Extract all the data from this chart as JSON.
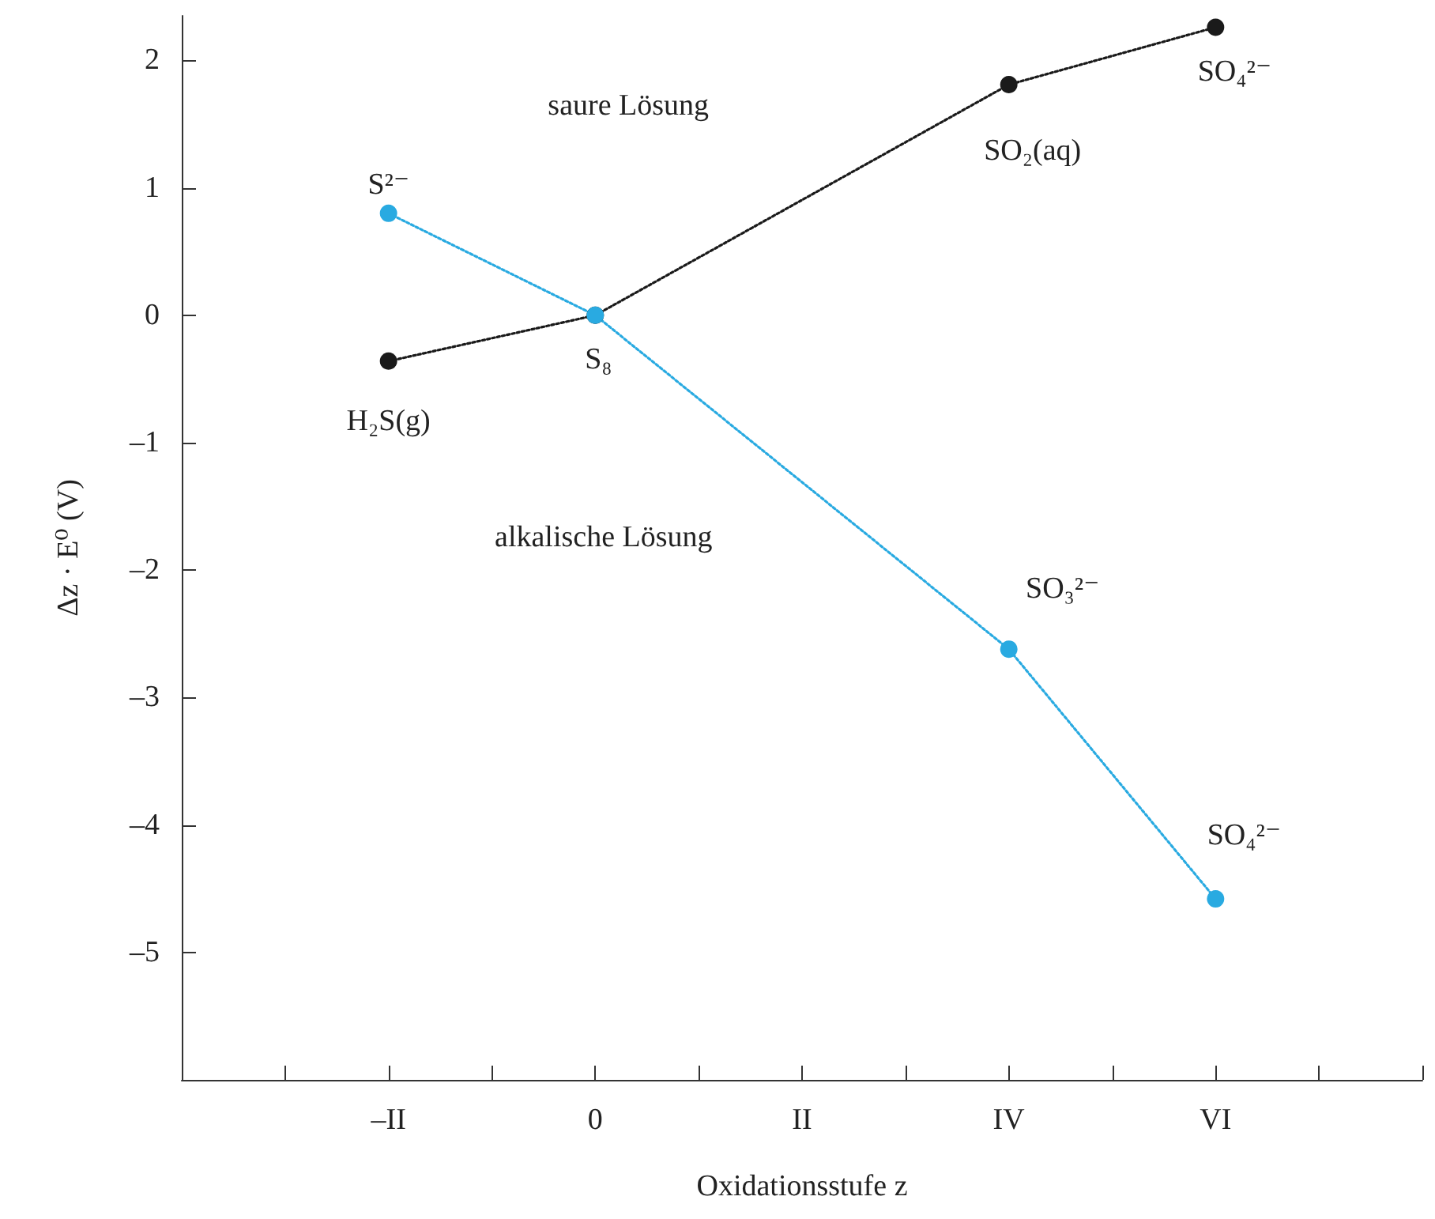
{
  "chart_data": {
    "type": "line",
    "xlabel": "Oxidationsstufe z",
    "ylabel": "Δz · E⁰ (V)",
    "categories": [
      "–II",
      null,
      "0",
      null,
      "II",
      null,
      "IV",
      null,
      "VI"
    ],
    "ylim": [
      -6,
      2.35
    ],
    "yticks": [
      {
        "value": -5,
        "label": "–5"
      },
      {
        "value": -4,
        "label": "–4"
      },
      {
        "value": -3,
        "label": "–3"
      },
      {
        "value": -2,
        "label": "–2"
      },
      {
        "value": -1,
        "label": "–1"
      },
      0,
      1,
      2
    ],
    "series": [
      {
        "color": "#1a1a1a",
        "values": [
          -0.36,
          null,
          0,
          null,
          null,
          null,
          1.81,
          null,
          2.26
        ]
      },
      {
        "color": "#29aae1",
        "values": [
          0.8,
          null,
          0,
          null,
          null,
          null,
          -2.62,
          null,
          -4.58
        ]
      }
    ],
    "marker": "circle",
    "line_style": "dotted",
    "grid": false,
    "annotations": [
      {
        "text": "S²⁻",
        "x": "–II",
        "y": 0.8
      },
      {
        "text": "H₂S(g)",
        "x": "–II",
        "y": -0.36
      },
      {
        "text": "S₈",
        "x": "0",
        "y": 0
      },
      {
        "text": "SO₂(aq)",
        "x": "IV",
        "y": 1.81
      },
      {
        "text": "SO₄²⁻",
        "x": "VI",
        "y": 2.26
      },
      {
        "text": "SO₃²⁻",
        "x": "IV",
        "y": -2.62
      },
      {
        "text": "SO₄²⁻",
        "x": "VI",
        "y": -4.58
      },
      "saure Lösung",
      "alkalische Lösung"
    ]
  }
}
